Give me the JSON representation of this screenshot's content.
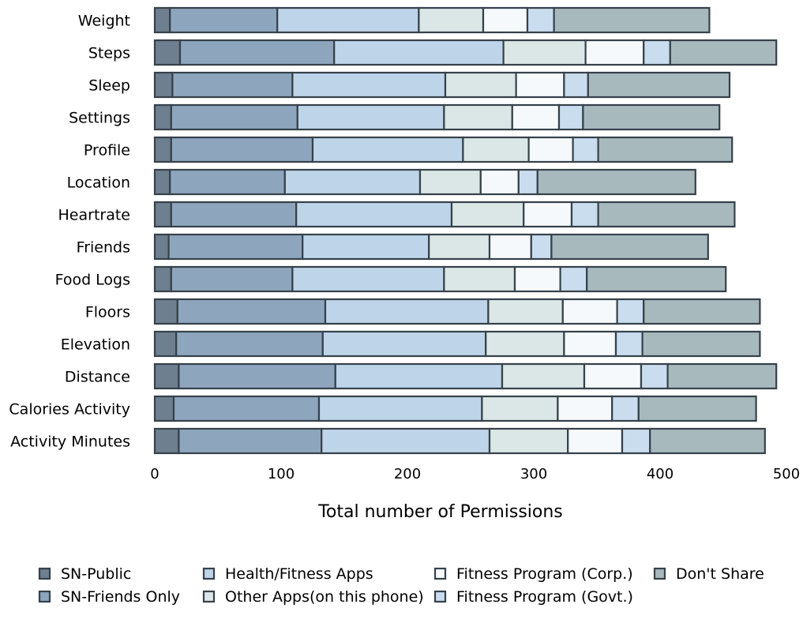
{
  "chart_data": {
    "type": "bar",
    "orientation": "horizontal",
    "stacked": true,
    "title": "",
    "xlabel": "Total number of Permissions",
    "ylabel": "",
    "xlim": [
      0,
      500
    ],
    "x_ticks": [
      "0",
      "100",
      "200",
      "300",
      "400",
      "500"
    ],
    "x_tick_values": [
      0,
      100,
      200,
      300,
      400,
      500
    ],
    "grid": false,
    "legend_position": "bottom",
    "categories": [
      "Weight",
      "Steps",
      "Sleep",
      "Settings",
      "Profile",
      "Location",
      "Heartrate",
      "Friends",
      "Food Logs",
      "Floors",
      "Elevation",
      "Distance",
      "Calories Activity",
      "Activity Minutes"
    ],
    "series": [
      {
        "name": "SN-Public",
        "color": "#6e7f8f",
        "values": [
          12,
          20,
          14,
          13,
          13,
          12,
          13,
          11,
          13,
          18,
          17,
          19,
          15,
          19
        ]
      },
      {
        "name": "SN-Friends Only",
        "color": "#8da5bd",
        "values": [
          85,
          122,
          95,
          100,
          112,
          91,
          99,
          106,
          96,
          117,
          116,
          124,
          115,
          113
        ]
      },
      {
        "name": "Health/Fitness Apps",
        "color": "#bed5e9",
        "values": [
          112,
          134,
          121,
          116,
          119,
          107,
          123,
          100,
          120,
          129,
          129,
          132,
          129,
          133
        ]
      },
      {
        "name": "Other Apps(on this phone)",
        "color": "#dbe6e6",
        "values": [
          51,
          65,
          56,
          54,
          52,
          48,
          57,
          48,
          56,
          59,
          62,
          65,
          60,
          62
        ]
      },
      {
        "name": "Fitness Program (Corp.)",
        "color": "#f5f9fc",
        "values": [
          35,
          46,
          38,
          37,
          35,
          30,
          38,
          33,
          36,
          43,
          41,
          45,
          43,
          43
        ]
      },
      {
        "name": "Fitness Program (Govt.)",
        "color": "#c9ddee",
        "values": [
          21,
          21,
          19,
          19,
          20,
          15,
          21,
          16,
          21,
          21,
          21,
          21,
          21,
          22
        ]
      },
      {
        "name": "Don't Share",
        "color": "#a8b9bd",
        "values": [
          123,
          84,
          112,
          108,
          106,
          125,
          108,
          124,
          110,
          92,
          93,
          86,
          93,
          91
        ]
      }
    ]
  }
}
